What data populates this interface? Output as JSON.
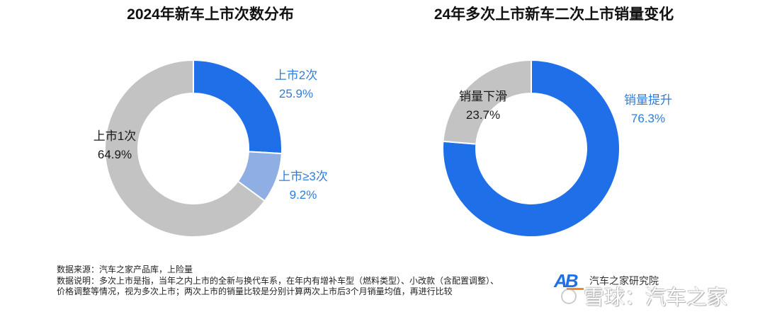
{
  "chart_data": [
    {
      "type": "pie",
      "donut": true,
      "title": "2024年新车上市次数分布",
      "slices": [
        {
          "label": "上市2次",
          "value": 25.9,
          "value_label": "25.9%",
          "color": "#1f6fe8",
          "label_color": "#2f7dd8"
        },
        {
          "label": "上市≥3次",
          "value": 9.2,
          "value_label": "9.2%",
          "color": "#8faee3",
          "label_color": "#2f7dd8"
        },
        {
          "label": "上市1次",
          "value": 64.9,
          "value_label": "64.9%",
          "color": "#c3c3c3",
          "label_color": "#1a1a1a"
        }
      ]
    },
    {
      "type": "pie",
      "donut": true,
      "title": "24年多次上市新车二次上市销量变化",
      "slices": [
        {
          "label": "销量提升",
          "value": 76.3,
          "value_label": "76.3%",
          "color": "#1f6fe8",
          "label_color": "#2f7dd8"
        },
        {
          "label": "销量下滑",
          "value": 23.7,
          "value_label": "23.7%",
          "color": "#c3c3c3",
          "label_color": "#1a1a1a"
        }
      ]
    }
  ],
  "footnotes": {
    "source": "数据来源：汽车之家产品库，上险量",
    "note_lines": [
      "数据说明：多次上市是指，当年之内上市的全新与换代车系，在年内有增补车型（燃料类型）、小改款（含配置调整）、",
      "价格调整等情况，视为多次上市；两次上市的销量比较是分别计算两次上市后3个月销量均值，再进行比较"
    ]
  },
  "logo": {
    "mark": "AB",
    "name": "汽车之家研究院"
  },
  "watermark": {
    "text": "雪球：汽车之家",
    "icon": "snowball-icon"
  }
}
